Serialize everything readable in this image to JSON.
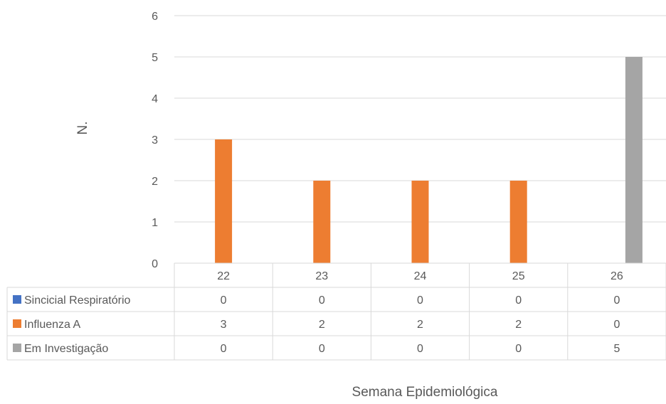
{
  "chart_data": {
    "type": "bar",
    "ylabel": "N.",
    "xlabel": "Semana Epidemiológica",
    "ylim": [
      0,
      6
    ],
    "yticks": [
      "0",
      "1",
      "2",
      "3",
      "4",
      "5",
      "6"
    ],
    "grid": true,
    "legend": "data-table-left",
    "categories": [
      "22",
      "23",
      "24",
      "25",
      "26"
    ],
    "series": [
      {
        "name": "Sincicial Respiratório",
        "color": "#4472C4",
        "values": [
          0,
          0,
          0,
          0,
          0
        ]
      },
      {
        "name": "Influenza A",
        "color": "#ED7D31",
        "values": [
          3,
          2,
          2,
          2,
          0
        ]
      },
      {
        "name": "Em Investigação",
        "color": "#A5A5A5",
        "values": [
          0,
          0,
          0,
          0,
          5
        ]
      }
    ]
  }
}
